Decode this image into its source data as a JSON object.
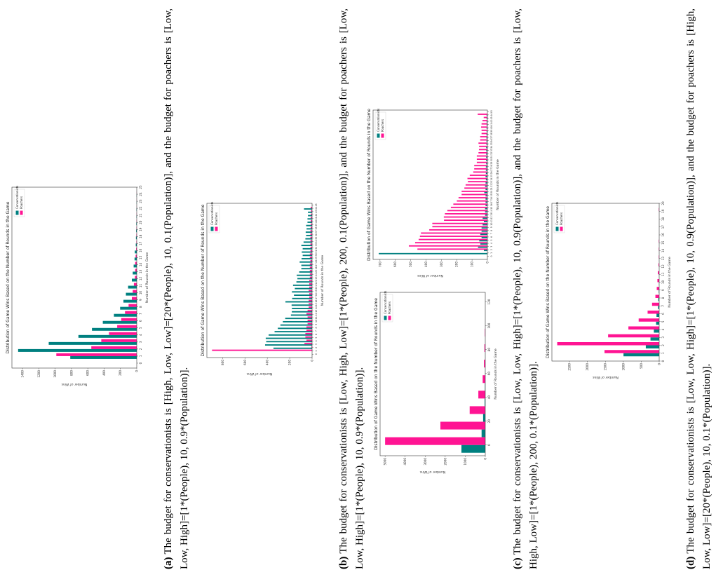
{
  "colors": {
    "conservationists": "#008080",
    "poachers": "#ff1493"
  },
  "captions": [
    {
      "label": "(a)",
      "text": "The budget for conservationists is [High, Low, Low]=[20*(People), 10, 0.1(Population)], and the budget for poachers is [Low, Low, High]=[1*(People), 10, 0.9*(Population)]."
    },
    {
      "label": "(b)",
      "text": "The budget for conservationists is [Low, High, Low]=[1*(People), 200, 0.1(Population)], and the budget for poachers is [Low, Low, High]=[1*(People), 10, 0.9*(Population)]."
    },
    {
      "label": "(c)",
      "text": "The budget for conservationists is [Low, Low, High]=[1*(People), 10, 0.9(Population)], and the budget for poachers is [Low, High, Low]=[1*(People), 200, 0.1*(Population)]."
    },
    {
      "label": "(d)",
      "text": "The budget for conservationists is [Low, Low, High]=[1*(People), 10, 0.9(Population)], and the budget for poachers is [High, Low, Low]=[20*(People), 10, 0.1*(Population)]."
    }
  ],
  "chart_data": [
    {
      "type": "bar",
      "title": "Distribution of Game Wins Based on the Number of Rounds in the Game",
      "xlabel": "Number of Rounds in the Game",
      "ylabel": "Number of Wins",
      "xlim": [
        -0.7,
        25
      ],
      "ylim": [
        0,
        1530
      ],
      "bar_width": 0.4,
      "xticks": [
        0,
        1,
        2,
        3,
        4,
        5,
        6,
        7,
        8,
        9,
        10,
        11,
        12,
        13,
        14,
        15,
        16,
        17,
        18,
        19,
        20,
        21,
        22,
        23,
        24,
        25
      ],
      "yticks": [
        0,
        200,
        400,
        600,
        800,
        1000,
        1200,
        1400
      ],
      "legend": "upper-right",
      "grid": false,
      "x": [
        1,
        2,
        3,
        4,
        5,
        6,
        7,
        8,
        9,
        10,
        11,
        12,
        13,
        14,
        15,
        16,
        17,
        18,
        19,
        20,
        21,
        22,
        23,
        24
      ],
      "series": [
        {
          "name": "Conservationists",
          "values": [
            815,
            1454,
            1079,
            715,
            549,
            416,
            280,
            204,
            163,
            133,
            106,
            60,
            49,
            38,
            27,
            24,
            12,
            10,
            8,
            6,
            4,
            4,
            2,
            2
          ]
        },
        {
          "name": "Poachers",
          "values": [
            986,
            557,
            435,
            340,
            240,
            190,
            144,
            100,
            60,
            49,
            35,
            22,
            19,
            19,
            14,
            8,
            5,
            5,
            4,
            3,
            2,
            1,
            1,
            1
          ]
        }
      ]
    },
    {
      "type": "bar",
      "title": "Distribution of Game Wins Based on the Number of Rounds in the Game",
      "xlabel": "Number of Rounds in the Game",
      "ylabel": "Number of Wins",
      "xlim": [
        -1,
        45.5
      ],
      "ylim": [
        0,
        940
      ],
      "bar_width": 0.4,
      "xticks": [
        0,
        1,
        2,
        3,
        4,
        5,
        6,
        7,
        8,
        9,
        10,
        11,
        12,
        13,
        14,
        15,
        16,
        17,
        18,
        19,
        20,
        21,
        22,
        23,
        24,
        25,
        26,
        27,
        28,
        29,
        30,
        31,
        32,
        33,
        34,
        35,
        36,
        37,
        38,
        39,
        40,
        41,
        42,
        43,
        44,
        45
      ],
      "yticks": [
        0,
        200,
        400,
        600,
        800
      ],
      "legend": "upper-right",
      "grid": false,
      "x": [
        1,
        2,
        3,
        4,
        5,
        6,
        7,
        8,
        9,
        10,
        11,
        12,
        13,
        14,
        15,
        16,
        17,
        18,
        19,
        20,
        21,
        22,
        23,
        24,
        25,
        26,
        27,
        28,
        29,
        30,
        31,
        32,
        33,
        34,
        35,
        36,
        37,
        38,
        39,
        40,
        41,
        42,
        43,
        44
      ],
      "series": [
        {
          "name": "Conservationists",
          "values": [
            0,
            345,
            420,
            410,
            414,
            388,
            335,
            306,
            283,
            261,
            240,
            189,
            181,
            180,
            183,
            238,
            178,
            162,
            180,
            154,
            170,
            140,
            131,
            137,
            115,
            96,
            96,
            111,
            94,
            84,
            92,
            84,
            96,
            76,
            60,
            53,
            57,
            49,
            53,
            41,
            41,
            37,
            37,
            72
          ]
        },
        {
          "name": "Poachers",
          "values": [
            894,
            5,
            68,
            50,
            60,
            60,
            50,
            50,
            40,
            40,
            40,
            50,
            40,
            30,
            30,
            30,
            25,
            25,
            30,
            25,
            25,
            25,
            20,
            20,
            20,
            20,
            20,
            15,
            20,
            20,
            15,
            15,
            15,
            15,
            15,
            15,
            15,
            12,
            12,
            12,
            12,
            10,
            10,
            12
          ]
        }
      ]
    },
    {
      "type": "bar",
      "title": "Distribution of Game Wins Based on the Number of Rounds in the Game",
      "xlabel": "Number of Rounds in the Game",
      "ylabel": "Number of Wins",
      "xlim": [
        -1,
        45.5
      ],
      "ylim": [
        0,
        745
      ],
      "bar_width": 0.4,
      "xticks": [
        0,
        1,
        2,
        3,
        4,
        5,
        6,
        7,
        8,
        9,
        10,
        11,
        12,
        13,
        14,
        15,
        16,
        17,
        18,
        19,
        20,
        21,
        22,
        23,
        24,
        25,
        26,
        27,
        28,
        29,
        30,
        31,
        32,
        33,
        34,
        35,
        36,
        37,
        38,
        39,
        40,
        41,
        42,
        43,
        44,
        45
      ],
      "yticks": [
        0,
        100,
        200,
        300,
        400,
        500,
        600,
        700
      ],
      "legend": "upper-right",
      "grid": false,
      "x": [
        1,
        2,
        3,
        4,
        5,
        6,
        7,
        8,
        9,
        10,
        11,
        12,
        13,
        14,
        15,
        16,
        17,
        18,
        19,
        20,
        21,
        22,
        23,
        24,
        25,
        26,
        27,
        28,
        29,
        30,
        31,
        32,
        33,
        34,
        35,
        36,
        37,
        38,
        39,
        40,
        41,
        42,
        43,
        44
      ],
      "series": [
        {
          "name": "Conservationists",
          "values": [
            708,
            23,
            61,
            46,
            53,
            38,
            46,
            38,
            38,
            31,
            23,
            31,
            15,
            15,
            15,
            12,
            12,
            12,
            12,
            20,
            12,
            15,
            12,
            10,
            12,
            10,
            10,
            10,
            8,
            8,
            8,
            8,
            8,
            8,
            6,
            6,
            6,
            6,
            5,
            5,
            5,
            5,
            5,
            5
          ]
        },
        {
          "name": "Poachers",
          "values": [
            0,
            456,
            512,
            471,
            448,
            440,
            433,
            379,
            359,
            359,
            283,
            284,
            277,
            261,
            238,
            222,
            199,
            188,
            168,
            168,
            150,
            142,
            127,
            130,
            115,
            92,
            86,
            86,
            69,
            69,
            69,
            58,
            55,
            54,
            58,
            47,
            47,
            38,
            38,
            41,
            38,
            32,
            24,
            63
          ]
        }
      ]
    },
    {
      "type": "bar",
      "title": "Distribution of Game Wins Based on the Number of Rounds in the Game",
      "xlabel": "Number of Rounds in the Game",
      "ylabel": "Number of Wins",
      "xlim": [
        -9,
        128
      ],
      "ylim": [
        0,
        5250
      ],
      "bar_width": 6.5,
      "xticks": [
        0,
        20,
        40,
        60,
        80,
        100,
        120
      ],
      "yticks": [
        0,
        1000,
        2000,
        3000,
        4000,
        5000
      ],
      "legend": "upper-right",
      "grid": false,
      "x": [
        0,
        13,
        26,
        39,
        52,
        65,
        78,
        91
      ],
      "series": [
        {
          "name": "Conservationists",
          "values": [
            1190,
            184,
            108,
            32,
            20,
            5,
            3,
            2
          ]
        },
        {
          "name": "Poachers",
          "values": [
            5000,
            2240,
            779,
            346,
            130,
            65,
            43,
            22
          ]
        }
      ]
    },
    {
      "type": "bar",
      "title": "Distribution of Game Wins Based on the Number of Rounds in the Game",
      "xlabel": "Number of Rounds in the Game",
      "ylabel": "Number of Wins",
      "xlim": [
        0,
        20
      ],
      "ylim": [
        0,
        2990
      ],
      "bar_width": 0.4,
      "xticks": [
        0,
        1,
        2,
        3,
        4,
        5,
        6,
        7,
        8,
        9,
        10,
        11,
        12,
        13,
        14,
        15,
        16,
        17,
        18,
        19,
        20
      ],
      "yticks": [
        0,
        500,
        1000,
        1500,
        2000,
        2500
      ],
      "legend": "upper-right",
      "grid": false,
      "x": [
        1,
        2,
        3,
        4,
        5,
        6,
        7,
        8,
        9,
        10,
        11,
        12,
        13,
        14,
        15,
        16,
        17,
        18,
        19
      ],
      "series": [
        {
          "name": "Conservationists",
          "values": [
            995,
            373,
            243,
            149,
            87,
            75,
            31,
            25,
            12,
            5,
            3,
            2,
            2,
            1,
            1,
            0,
            0,
            0,
            0
          ]
        },
        {
          "name": "Poachers",
          "values": [
            1524,
            2842,
            1424,
            858,
            572,
            323,
            199,
            106,
            68,
            50,
            37,
            19,
            12,
            12,
            12,
            0,
            0,
            0,
            12
          ]
        }
      ]
    }
  ]
}
